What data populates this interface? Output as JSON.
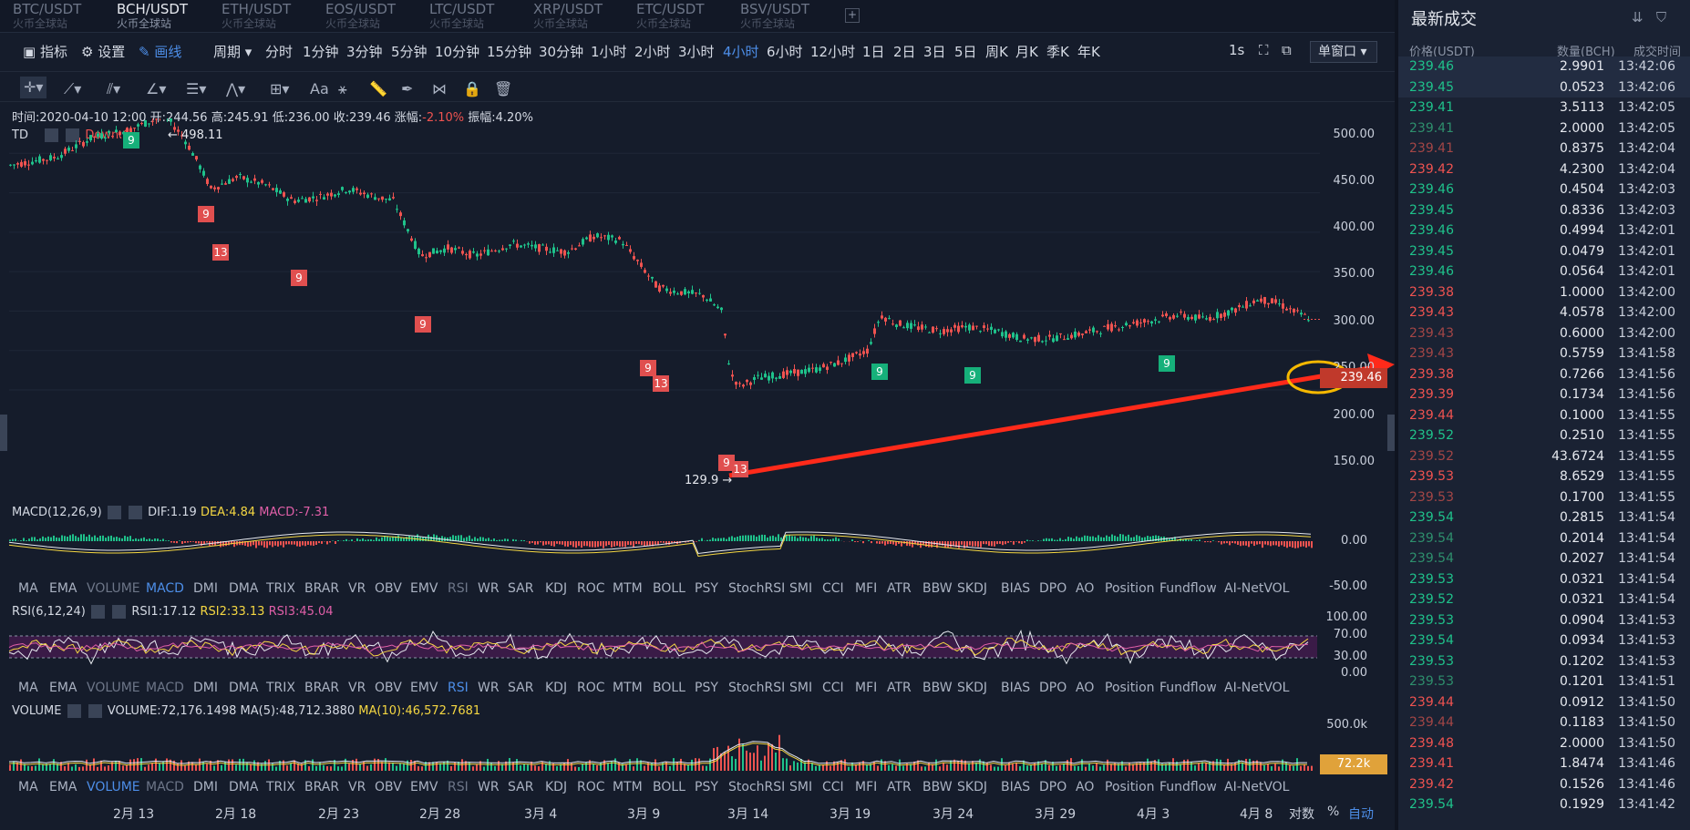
{
  "pairs": [
    {
      "symbol": "BTC/USDT",
      "exchange": "火币全球站"
    },
    {
      "symbol": "BCH/USDT",
      "exchange": "火币全球站"
    },
    {
      "symbol": "ETH/USDT",
      "exchange": "火币全球站"
    },
    {
      "symbol": "EOS/USDT",
      "exchange": "火币全球站"
    },
    {
      "symbol": "LTC/USDT",
      "exchange": "火币全球站"
    },
    {
      "symbol": "XRP/USDT",
      "exchange": "火币全球站"
    },
    {
      "symbol": "ETC/USDT",
      "exchange": "火币全球站"
    },
    {
      "symbol": "BSV/USDT",
      "exchange": "火币全球站"
    }
  ],
  "add_tab": "+",
  "toolbar": {
    "indicator": "指标",
    "settings": "设置",
    "draw": "画线",
    "period": "周期",
    "periods": [
      "分时",
      "1分钟",
      "3分钟",
      "5分钟",
      "10分钟",
      "15分钟",
      "30分钟",
      "1小时",
      "2小时",
      "3小时",
      "4小时",
      "6小时",
      "12小时",
      "1日",
      "2日",
      "3日",
      "5日",
      "周K",
      "月K",
      "季K",
      "年K"
    ],
    "refresh": "1s",
    "window": "单窗口"
  },
  "draw_tools": {
    "text_tool": "Aa"
  },
  "info": {
    "time": "时间:2020-04-10 12:00",
    "open": "开:244.56",
    "high": "高:245.91",
    "low": "低:236.00",
    "close": "收:239.46",
    "change_label": "涨幅:",
    "change": "-2.10%",
    "amplitude": "振幅:4.20%"
  },
  "td": {
    "label": "TD",
    "down": "Down:6"
  },
  "price_axis": [
    "500.00",
    "450.00",
    "400.00",
    "350.00",
    "300.00",
    "250.00",
    "200.00",
    "150.00"
  ],
  "high_label": "← 498.11",
  "low_label": "129.9 →",
  "current_price_tag": "239.46",
  "td_marks": [
    {
      "v": "9",
      "c": "g"
    },
    {
      "v": "9",
      "c": "r"
    },
    {
      "v": "13",
      "c": "r"
    },
    {
      "v": "9",
      "c": "r"
    },
    {
      "v": "9",
      "c": "r"
    },
    {
      "v": "9",
      "c": "r"
    },
    {
      "v": "13",
      "c": "r"
    },
    {
      "v": "9",
      "c": "r"
    },
    {
      "v": "13",
      "c": "r"
    },
    {
      "v": "9",
      "c": "g"
    },
    {
      "v": "9",
      "c": "g"
    },
    {
      "v": "9",
      "c": "g"
    }
  ],
  "macd": {
    "title": "MACD(12,26,9)",
    "dif": "DIF:1.19",
    "dea": "DEA:4.84",
    "macd": "MACD:-7.31",
    "axis": [
      "0.00",
      "-50.00"
    ]
  },
  "rsi": {
    "title": "RSI(6,12,24)",
    "rsi1": "RSI1:17.12",
    "rsi2": "RSI2:33.13",
    "rsi3": "RSI3:45.04",
    "axis": [
      "100.00",
      "70.00",
      "30.00",
      "0.00"
    ]
  },
  "volume": {
    "title": "VOLUME",
    "vol": "VOLUME:72,176.1498",
    "ma5": "MA(5):48,712.3880",
    "ma10": "MA(10):46,572.7681",
    "axis": [
      "500.0k"
    ],
    "tag": "72.2k"
  },
  "indicator_list": [
    "MA",
    "EMA",
    "VOLUME",
    "MACD",
    "DMI",
    "DMA",
    "TRIX",
    "BRAR",
    "VR",
    "OBV",
    "EMV",
    "RSI",
    "WR",
    "SAR",
    "KDJ",
    "ROC",
    "MTM",
    "BOLL",
    "PSY",
    "StochRSI",
    "SMI",
    "CCI",
    "MFI",
    "ATR",
    "BBW",
    "SKDJ",
    "BIAS",
    "DPO",
    "AO",
    "Position",
    "Fundflow",
    "AI-NetVOL"
  ],
  "dates": [
    "2月 13",
    "2月 18",
    "2月 23",
    "2月 28",
    "3月 4",
    "3月 9",
    "3月 14",
    "3月 19",
    "3月 24",
    "3月 29",
    "4月 3",
    "4月 8"
  ],
  "axis_options": {
    "log": "对数",
    "percent": "%",
    "auto": "自动"
  },
  "trades": {
    "title": "最新成交",
    "headers": {
      "price": "价格(USDT)",
      "qty": "数量(BCH)",
      "time": "成交时间"
    },
    "rows": [
      {
        "p": "239.46",
        "q": "2.9901",
        "t": "13:42:06",
        "c": "up"
      },
      {
        "p": "239.45",
        "q": "0.0523",
        "t": "13:42:06",
        "c": "up"
      },
      {
        "p": "239.41",
        "q": "3.5113",
        "t": "13:42:05",
        "c": "up"
      },
      {
        "p": "239.41",
        "q": "2.0000",
        "t": "13:42:05",
        "c": "upd"
      },
      {
        "p": "239.41",
        "q": "0.8375",
        "t": "13:42:04",
        "c": "dnd"
      },
      {
        "p": "239.42",
        "q": "4.2300",
        "t": "13:42:04",
        "c": "dn"
      },
      {
        "p": "239.46",
        "q": "0.4504",
        "t": "13:42:03",
        "c": "up"
      },
      {
        "p": "239.45",
        "q": "0.8336",
        "t": "13:42:03",
        "c": "up"
      },
      {
        "p": "239.46",
        "q": "0.4994",
        "t": "13:42:01",
        "c": "up"
      },
      {
        "p": "239.45",
        "q": "0.0479",
        "t": "13:42:01",
        "c": "up"
      },
      {
        "p": "239.46",
        "q": "0.0564",
        "t": "13:42:01",
        "c": "up"
      },
      {
        "p": "239.38",
        "q": "1.0000",
        "t": "13:42:00",
        "c": "dn"
      },
      {
        "p": "239.43",
        "q": "4.0578",
        "t": "13:42:00",
        "c": "dn"
      },
      {
        "p": "239.43",
        "q": "0.6000",
        "t": "13:42:00",
        "c": "dnd"
      },
      {
        "p": "239.43",
        "q": "0.5759",
        "t": "13:41:58",
        "c": "dnd"
      },
      {
        "p": "239.38",
        "q": "0.7266",
        "t": "13:41:56",
        "c": "dn"
      },
      {
        "p": "239.39",
        "q": "0.1734",
        "t": "13:41:56",
        "c": "dn"
      },
      {
        "p": "239.44",
        "q": "0.1000",
        "t": "13:41:55",
        "c": "dn"
      },
      {
        "p": "239.52",
        "q": "0.2510",
        "t": "13:41:55",
        "c": "up"
      },
      {
        "p": "239.52",
        "q": "43.6724",
        "t": "13:41:55",
        "c": "dnd"
      },
      {
        "p": "239.53",
        "q": "8.6529",
        "t": "13:41:55",
        "c": "dn"
      },
      {
        "p": "239.53",
        "q": "0.1700",
        "t": "13:41:55",
        "c": "dnd"
      },
      {
        "p": "239.54",
        "q": "0.2815",
        "t": "13:41:54",
        "c": "up"
      },
      {
        "p": "239.54",
        "q": "0.2014",
        "t": "13:41:54",
        "c": "upd"
      },
      {
        "p": "239.54",
        "q": "0.2027",
        "t": "13:41:54",
        "c": "upd"
      },
      {
        "p": "239.53",
        "q": "0.0321",
        "t": "13:41:54",
        "c": "up"
      },
      {
        "p": "239.52",
        "q": "0.0321",
        "t": "13:41:54",
        "c": "up"
      },
      {
        "p": "239.53",
        "q": "0.0904",
        "t": "13:41:53",
        "c": "up"
      },
      {
        "p": "239.54",
        "q": "0.0934",
        "t": "13:41:53",
        "c": "up"
      },
      {
        "p": "239.53",
        "q": "0.1202",
        "t": "13:41:53",
        "c": "up"
      },
      {
        "p": "239.53",
        "q": "0.1201",
        "t": "13:41:51",
        "c": "upd"
      },
      {
        "p": "239.44",
        "q": "0.0912",
        "t": "13:41:50",
        "c": "dn"
      },
      {
        "p": "239.44",
        "q": "0.1183",
        "t": "13:41:50",
        "c": "dnd"
      },
      {
        "p": "239.48",
        "q": "2.0000",
        "t": "13:41:50",
        "c": "dn"
      },
      {
        "p": "239.41",
        "q": "1.8474",
        "t": "13:41:46",
        "c": "dn"
      },
      {
        "p": "239.42",
        "q": "0.1526",
        "t": "13:41:46",
        "c": "dn"
      },
      {
        "p": "239.54",
        "q": "0.1929",
        "t": "13:41:42",
        "c": "up"
      }
    ]
  },
  "colors": {
    "up": "#1fc28b",
    "down": "#ef5350",
    "accent": "#4d8ee8",
    "arrow": "#ff2a1a",
    "circle": "#f5b800"
  }
}
